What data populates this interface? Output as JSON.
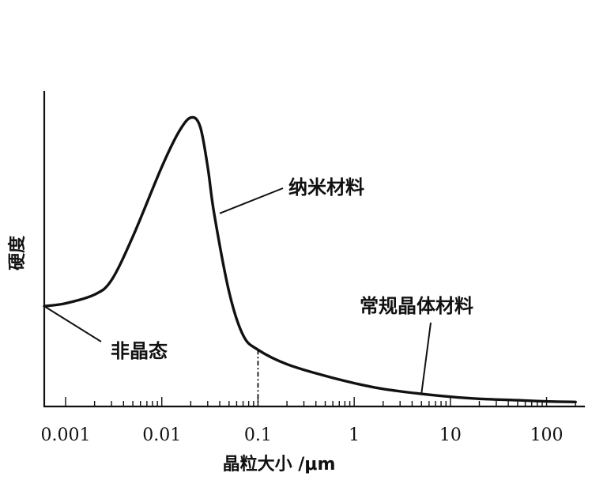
{
  "chart_data": {
    "type": "line",
    "title": "",
    "xlabel": "晶粒大小 /μm",
    "ylabel": "硬度",
    "xscale": "log",
    "xlim": [
      0.0006,
      250
    ],
    "ylim": [
      0,
      1
    ],
    "grid": false,
    "x_tick_labels": [
      "0.001",
      "0.01",
      "0.1",
      "1",
      "10",
      "100"
    ],
    "x_tick_values": [
      0.001,
      0.01,
      0.1,
      1,
      10,
      100
    ],
    "series": [
      {
        "x": [
          0.0006,
          0.001,
          0.002,
          0.003,
          0.005,
          0.01,
          0.015,
          0.02,
          0.025,
          0.03,
          0.035,
          0.05,
          0.07,
          0.1,
          0.2,
          0.5,
          1,
          2,
          5,
          10,
          20,
          50,
          100,
          200
        ],
        "y": [
          0.34,
          0.35,
          0.38,
          0.43,
          0.58,
          0.82,
          0.94,
          0.99,
          0.96,
          0.82,
          0.66,
          0.39,
          0.24,
          0.19,
          0.14,
          0.1,
          0.075,
          0.055,
          0.038,
          0.028,
          0.021,
          0.016,
          0.012,
          0.01
        ]
      }
    ],
    "reference_x": 0.1,
    "annotations": [
      {
        "text": "纳米材料",
        "x": 0.04,
        "y": 0.66
      },
      {
        "text": "常规晶体材料",
        "x": 5,
        "y": 0.038
      },
      {
        "text": "非晶态",
        "x": 0.0006,
        "y": 0.34
      }
    ]
  }
}
